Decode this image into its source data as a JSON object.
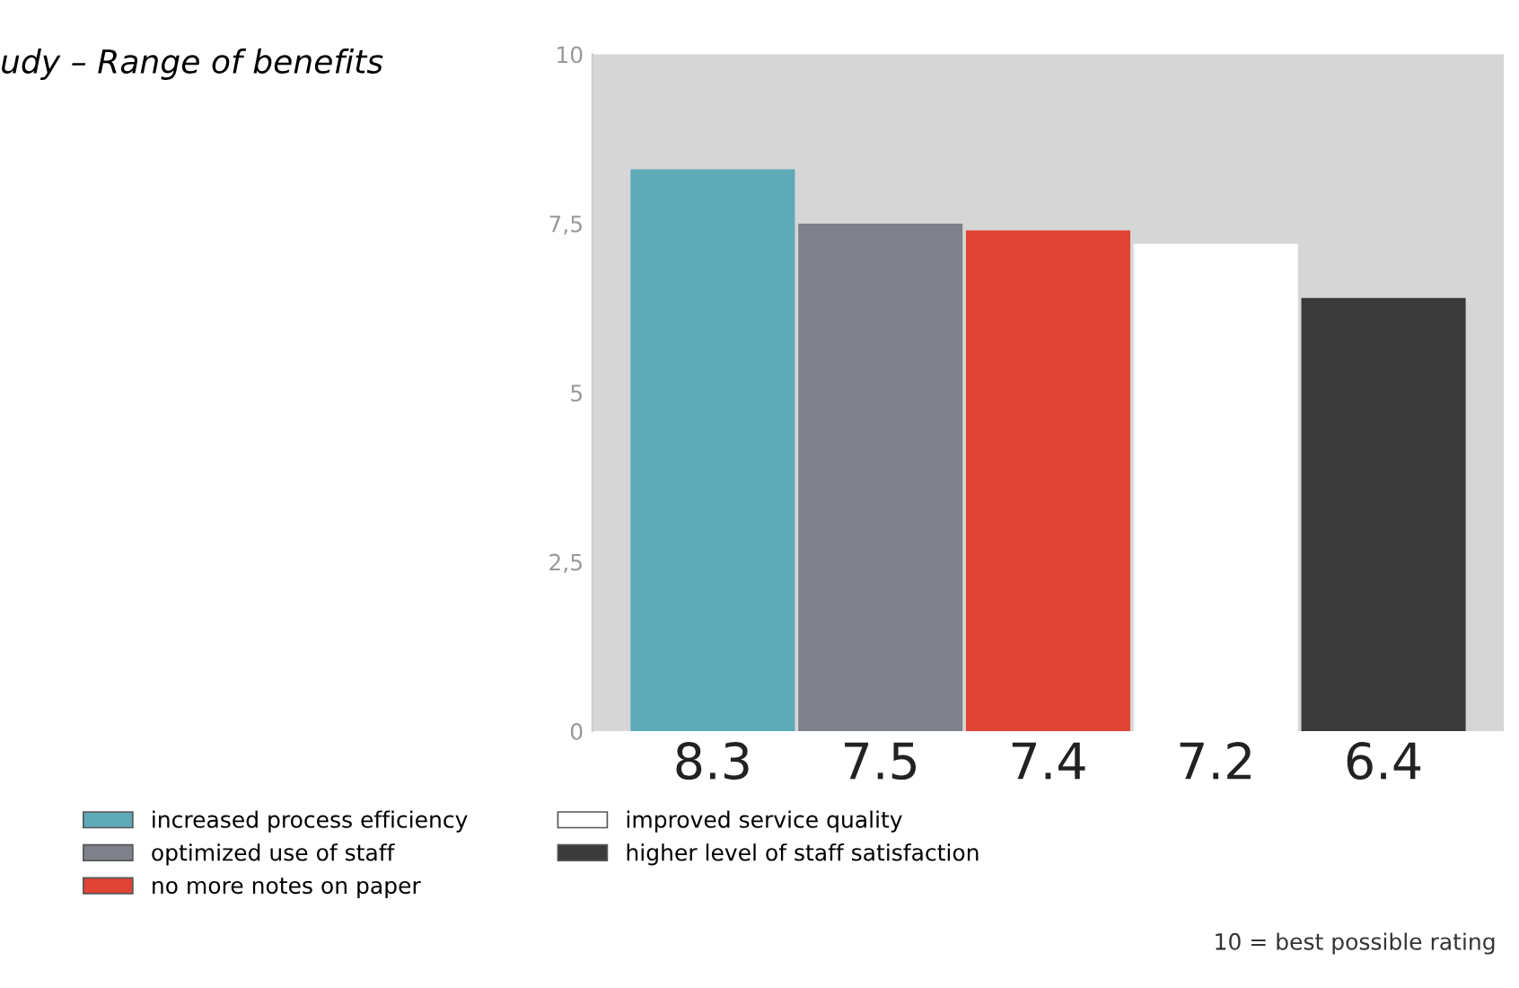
{
  "chart_data": {
    "type": "bar",
    "title": "udy – Range of benefits",
    "categories": [
      null
    ],
    "series": [
      {
        "name": "increased process efficiency",
        "color": "#5eaab9",
        "values": [
          8.3
        ]
      },
      {
        "name": "optimized use of staff",
        "color": "#7e8189",
        "values": [
          7.5
        ]
      },
      {
        "name": "no more notes on paper",
        "color": "#e04434",
        "values": [
          7.4
        ]
      },
      {
        "name": "improved service quality",
        "color": "#ffffff",
        "values": [
          7.2
        ]
      },
      {
        "name": "higher level of staff satisfaction",
        "color": "#3a3a3a",
        "values": [
          6.4
        ]
      }
    ],
    "ylim": [
      0,
      10
    ],
    "yticks": [
      0,
      {
        "value": 2.5,
        "label": "2,5"
      },
      5,
      {
        "value": 7.5,
        "label": "7,5"
      },
      10
    ],
    "data_labels": true,
    "legend": "bottom",
    "annotations": [
      "10 = best possible rating"
    ]
  }
}
